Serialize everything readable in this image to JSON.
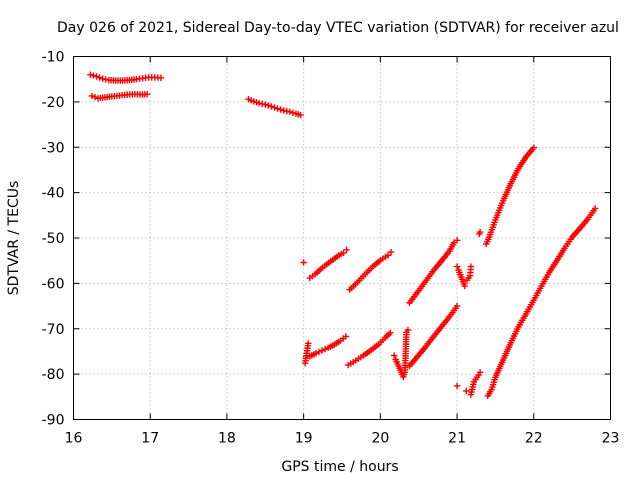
{
  "chart_data": {
    "type": "scatter",
    "title": "Day 026 of 2021, Sidereal Day-to-day VTEC variation (SDTVAR) for receiver azul",
    "xlabel": "GPS time / hours",
    "ylabel": "SDTVAR / TECUs",
    "xlim": [
      16,
      23
    ],
    "ylim": [
      -90,
      -10
    ],
    "x_ticks": [
      16,
      17,
      18,
      19,
      20,
      21,
      22,
      23
    ],
    "y_ticks": [
      -10,
      -20,
      -30,
      -40,
      -50,
      -60,
      -70,
      -80,
      -90
    ],
    "x_tick_labels": [
      "16",
      "17",
      "18",
      "19",
      "20",
      "21",
      "22",
      "23"
    ],
    "y_tick_labels": [
      "-10",
      "-20",
      "-30",
      "-40",
      "-50",
      "-60",
      "-70",
      "-80",
      "-90"
    ],
    "grid": true,
    "marker": "plus",
    "color": "#ff0000",
    "series": [
      {
        "points": [
          [
            16.22,
            -14.0
          ],
          [
            16.3,
            -14.4
          ],
          [
            16.38,
            -14.9
          ],
          [
            16.46,
            -15.2
          ],
          [
            16.55,
            -15.3
          ],
          [
            16.64,
            -15.3
          ],
          [
            16.73,
            -15.2
          ],
          [
            16.82,
            -15.0
          ],
          [
            16.9,
            -14.8
          ],
          [
            16.98,
            -14.6
          ],
          [
            17.06,
            -14.6
          ],
          [
            17.14,
            -14.7
          ]
        ]
      },
      {
        "points": [
          [
            16.24,
            -18.7
          ],
          [
            16.32,
            -19.2
          ],
          [
            16.41,
            -19.0
          ],
          [
            16.5,
            -18.8
          ],
          [
            16.6,
            -18.6
          ],
          [
            16.7,
            -18.4
          ],
          [
            16.8,
            -18.3
          ],
          [
            16.9,
            -18.4
          ],
          [
            16.96,
            -18.3
          ]
        ]
      },
      {
        "points": [
          [
            18.28,
            -19.4
          ],
          [
            18.35,
            -19.9
          ],
          [
            18.42,
            -20.3
          ],
          [
            18.5,
            -20.6
          ],
          [
            18.58,
            -21.0
          ],
          [
            18.66,
            -21.5
          ],
          [
            18.74,
            -21.9
          ],
          [
            18.82,
            -22.2
          ],
          [
            18.9,
            -22.6
          ],
          [
            18.96,
            -22.9
          ]
        ]
      },
      {
        "points": [
          [
            19.0,
            -55.4
          ],
          [
            19.02,
            -77.6
          ],
          [
            19.06,
            -73.2
          ]
        ]
      },
      {
        "points": [
          [
            19.08,
            -58.8
          ],
          [
            19.15,
            -58.0
          ],
          [
            19.22,
            -56.9
          ],
          [
            19.3,
            -55.8
          ],
          [
            19.38,
            -54.8
          ],
          [
            19.46,
            -53.8
          ],
          [
            19.52,
            -53.3
          ],
          [
            19.56,
            -52.6
          ]
        ]
      },
      {
        "points": [
          [
            19.08,
            -76.1
          ],
          [
            19.16,
            -75.4
          ],
          [
            19.24,
            -74.8
          ],
          [
            19.32,
            -74.2
          ],
          [
            19.4,
            -73.5
          ],
          [
            19.48,
            -72.6
          ],
          [
            19.55,
            -71.7
          ]
        ]
      },
      {
        "points": [
          [
            19.6,
            -61.4
          ],
          [
            19.7,
            -59.8
          ],
          [
            19.8,
            -58.0
          ],
          [
            19.9,
            -56.3
          ],
          [
            20.0,
            -54.9
          ],
          [
            20.1,
            -53.8
          ],
          [
            20.14,
            -53.1
          ]
        ]
      },
      {
        "points": [
          [
            19.58,
            -78.0
          ],
          [
            19.68,
            -77.0
          ],
          [
            19.78,
            -75.9
          ],
          [
            19.88,
            -74.7
          ],
          [
            19.98,
            -73.4
          ],
          [
            20.06,
            -72.0
          ],
          [
            20.13,
            -70.9
          ]
        ]
      },
      {
        "points": [
          [
            20.18,
            -75.9
          ],
          [
            20.2,
            -76.8
          ],
          [
            20.3,
            -80.6
          ],
          [
            20.32,
            -79.6
          ],
          [
            20.34,
            -70.8
          ],
          [
            20.36,
            -70.3
          ]
        ]
      },
      {
        "points": [
          [
            20.38,
            -64.3
          ],
          [
            20.5,
            -61.6
          ],
          [
            20.6,
            -59.3
          ],
          [
            20.7,
            -57.0
          ],
          [
            20.8,
            -55.0
          ],
          [
            20.9,
            -52.9
          ],
          [
            20.96,
            -51.0
          ],
          [
            21.0,
            -50.5
          ]
        ]
      },
      {
        "points": [
          [
            20.38,
            -78.2
          ],
          [
            20.48,
            -76.2
          ],
          [
            20.58,
            -74.2
          ],
          [
            20.68,
            -72.0
          ],
          [
            20.78,
            -69.9
          ],
          [
            20.88,
            -67.8
          ],
          [
            20.96,
            -66.0
          ],
          [
            21.0,
            -65.0
          ]
        ]
      },
      {
        "points": [
          [
            21.0,
            -56.3
          ],
          [
            21.0,
            -82.6
          ],
          [
            21.02,
            -57.1
          ],
          [
            21.1,
            -60.6
          ],
          [
            21.12,
            -83.7
          ],
          [
            21.13,
            -59.3
          ],
          [
            21.17,
            -58.3
          ],
          [
            21.18,
            -56.3
          ],
          [
            21.18,
            -84.5
          ],
          [
            21.22,
            -81.7
          ],
          [
            21.28,
            -80.2
          ],
          [
            21.29,
            -49.1
          ],
          [
            21.3,
            -48.7
          ],
          [
            21.3,
            -79.6
          ]
        ]
      },
      {
        "points": [
          [
            21.38,
            -51.3
          ],
          [
            21.42,
            -49.8
          ],
          [
            21.5,
            -46.0
          ],
          [
            21.6,
            -41.8
          ],
          [
            21.7,
            -38.0
          ],
          [
            21.8,
            -34.7
          ],
          [
            21.9,
            -32.1
          ],
          [
            21.96,
            -30.9
          ],
          [
            22.0,
            -30.1
          ]
        ]
      },
      {
        "points": [
          [
            21.4,
            -84.8
          ],
          [
            21.45,
            -83.4
          ],
          [
            21.5,
            -80.7
          ],
          [
            21.6,
            -76.9
          ],
          [
            21.7,
            -73.1
          ],
          [
            21.8,
            -69.6
          ],
          [
            21.9,
            -66.7
          ],
          [
            22.0,
            -63.7
          ],
          [
            22.1,
            -60.6
          ],
          [
            22.2,
            -57.6
          ],
          [
            22.3,
            -55.0
          ],
          [
            22.4,
            -52.3
          ],
          [
            22.5,
            -49.8
          ],
          [
            22.6,
            -47.9
          ],
          [
            22.7,
            -45.9
          ],
          [
            22.8,
            -43.5
          ]
        ]
      }
    ]
  }
}
